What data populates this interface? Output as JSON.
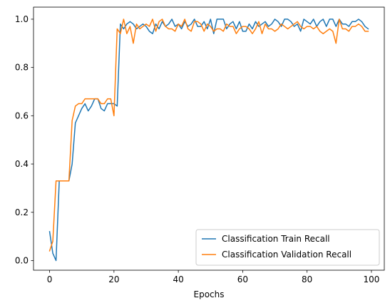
{
  "chart_data": {
    "type": "line",
    "xlabel": "Epochs",
    "ylabel": "",
    "xlim": [
      -5,
      104
    ],
    "ylim": [
      -0.04,
      1.05
    ],
    "xticks": [
      0,
      20,
      40,
      60,
      80,
      100
    ],
    "xtick_labels": [
      "0",
      "20",
      "40",
      "60",
      "80",
      "100"
    ],
    "yticks": [
      0.0,
      0.2,
      0.4,
      0.6,
      0.8,
      1.0
    ],
    "ytick_labels": [
      "0.0",
      "0.2",
      "0.4",
      "0.6",
      "0.8",
      "1.0"
    ],
    "grid": false,
    "legend_position": "lower-right",
    "x": [
      0,
      1,
      2,
      3,
      4,
      5,
      6,
      7,
      8,
      9,
      10,
      11,
      12,
      13,
      14,
      15,
      16,
      17,
      18,
      19,
      20,
      21,
      22,
      23,
      24,
      25,
      26,
      27,
      28,
      29,
      30,
      31,
      32,
      33,
      34,
      35,
      36,
      37,
      38,
      39,
      40,
      41,
      42,
      43,
      44,
      45,
      46,
      47,
      48,
      49,
      50,
      51,
      52,
      53,
      54,
      55,
      56,
      57,
      58,
      59,
      60,
      61,
      62,
      63,
      64,
      65,
      66,
      67,
      68,
      69,
      70,
      71,
      72,
      73,
      74,
      75,
      76,
      77,
      78,
      79,
      80,
      81,
      82,
      83,
      84,
      85,
      86,
      87,
      88,
      89,
      90,
      91,
      92,
      93,
      94,
      95,
      96,
      97,
      98,
      99
    ],
    "series": [
      {
        "name": "Classification Train Recall",
        "color": "#1f77b4",
        "values": [
          0.12,
          0.03,
          0.0,
          0.33,
          0.33,
          0.33,
          0.33,
          0.4,
          0.57,
          0.6,
          0.63,
          0.65,
          0.62,
          0.64,
          0.67,
          0.67,
          0.63,
          0.62,
          0.65,
          0.65,
          0.65,
          0.64,
          0.98,
          0.96,
          0.98,
          0.99,
          0.98,
          0.96,
          0.97,
          0.98,
          0.97,
          0.95,
          0.94,
          0.98,
          0.96,
          0.99,
          0.97,
          0.98,
          1.0,
          0.97,
          0.98,
          0.96,
          0.99,
          0.97,
          0.98,
          1.0,
          0.97,
          0.97,
          0.99,
          0.96,
          1.0,
          0.94,
          1.0,
          1.0,
          1.0,
          0.96,
          0.98,
          0.99,
          0.96,
          0.99,
          0.95,
          0.95,
          0.98,
          0.96,
          0.99,
          0.97,
          0.98,
          0.99,
          0.97,
          0.98,
          1.0,
          0.99,
          0.97,
          1.0,
          1.0,
          0.99,
          0.97,
          0.98,
          0.95,
          1.0,
          0.99,
          0.98,
          1.0,
          0.97,
          0.99,
          1.0,
          0.97,
          1.0,
          1.0,
          0.97,
          1.0,
          0.98,
          0.98,
          0.97,
          0.99,
          0.99,
          1.0,
          0.99,
          0.97,
          0.96
        ]
      },
      {
        "name": "Classification Validation Recall",
        "color": "#ff7f0e",
        "values": [
          0.04,
          0.08,
          0.33,
          0.33,
          0.33,
          0.33,
          0.33,
          0.58,
          0.64,
          0.65,
          0.65,
          0.67,
          0.67,
          0.67,
          0.67,
          0.67,
          0.65,
          0.65,
          0.67,
          0.67,
          0.6,
          0.96,
          0.94,
          1.0,
          0.94,
          0.97,
          0.9,
          0.98,
          0.96,
          0.97,
          0.98,
          0.97,
          1.0,
          0.95,
          0.99,
          1.0,
          0.97,
          0.96,
          0.96,
          0.95,
          0.98,
          0.97,
          1.0,
          0.96,
          0.95,
          0.99,
          0.99,
          0.98,
          0.95,
          0.98,
          0.97,
          0.95,
          0.96,
          0.96,
          0.95,
          0.98,
          0.97,
          0.97,
          0.94,
          0.96,
          0.97,
          0.97,
          0.96,
          0.94,
          0.96,
          0.99,
          0.94,
          0.98,
          0.96,
          0.96,
          0.95,
          0.96,
          0.98,
          0.97,
          0.96,
          0.97,
          0.98,
          0.99,
          0.97,
          0.96,
          0.97,
          0.97,
          0.96,
          0.97,
          0.95,
          0.94,
          0.95,
          0.96,
          0.95,
          0.9,
          1.0,
          0.96,
          0.96,
          0.95,
          0.97,
          0.97,
          0.98,
          0.97,
          0.95,
          0.95
        ]
      }
    ]
  }
}
